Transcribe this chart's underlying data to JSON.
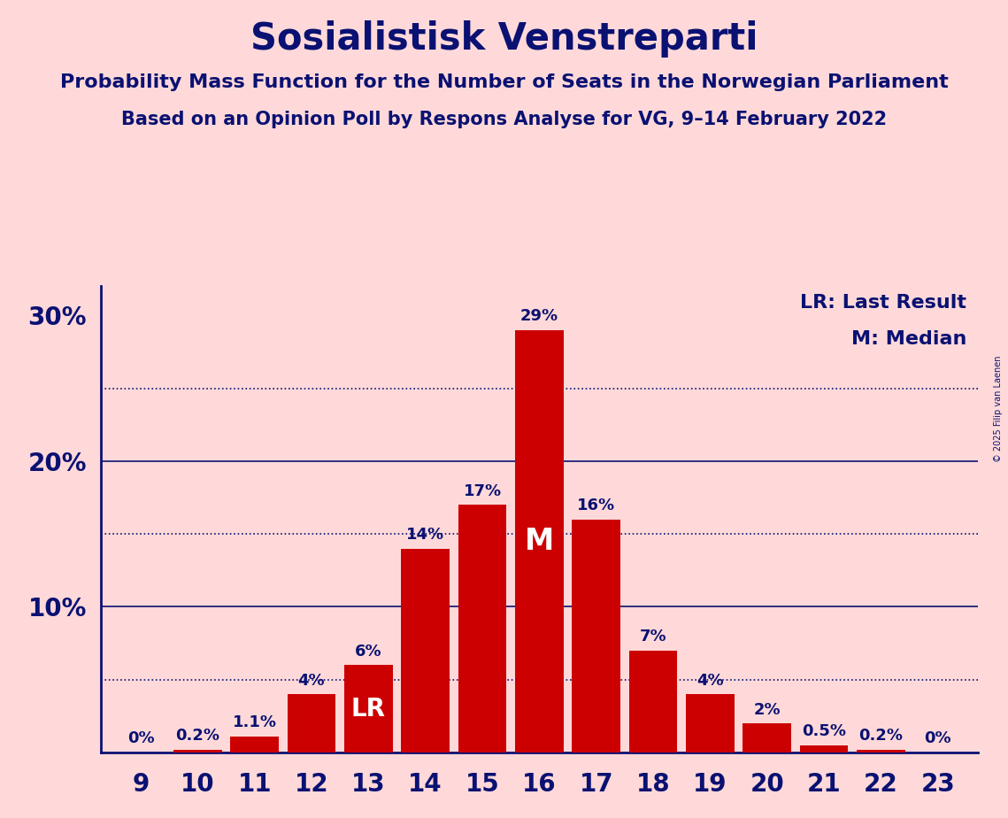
{
  "title": "Sosialistisk Venstreparti",
  "subtitle1": "Probability Mass Function for the Number of Seats in the Norwegian Parliament",
  "subtitle2": "Based on an Opinion Poll by Respons Analyse for VG, 9–14 February 2022",
  "copyright": "© 2025 Filip van Laenen",
  "seats": [
    9,
    10,
    11,
    12,
    13,
    14,
    15,
    16,
    17,
    18,
    19,
    20,
    21,
    22,
    23
  ],
  "probabilities": [
    0.0,
    0.2,
    1.1,
    4.0,
    6.0,
    14.0,
    17.0,
    29.0,
    16.0,
    7.0,
    4.0,
    2.0,
    0.5,
    0.2,
    0.0
  ],
  "bar_color": "#CC0000",
  "background_color": "#FFD9D9",
  "text_color": "#0A1172",
  "lr_seat": 13,
  "median_seat": 16,
  "ylim": [
    0,
    32
  ],
  "yticks": [
    10,
    20,
    30
  ],
  "dotted_lines": [
    5,
    15,
    25
  ],
  "solid_lines": [
    10,
    20
  ],
  "legend_lr": "LR: Last Result",
  "legend_m": "M: Median",
  "title_fontsize": 30,
  "subtitle_fontsize": 16,
  "subtitle2_fontsize": 15,
  "tick_fontsize": 20,
  "label_fontsize": 13,
  "legend_fontsize": 16
}
